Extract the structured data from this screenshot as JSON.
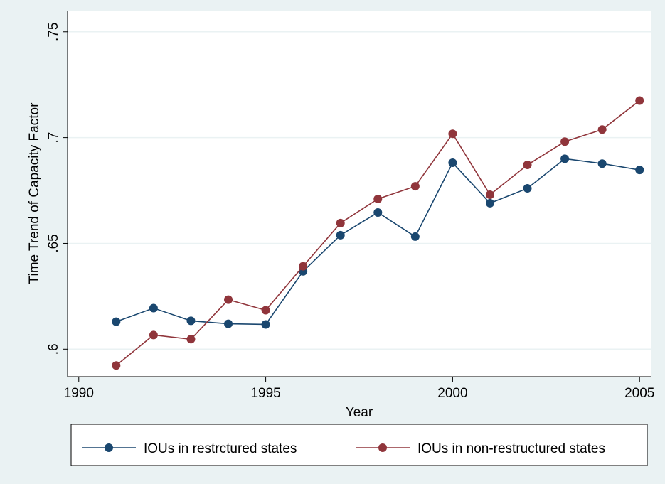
{
  "chart_data": {
    "type": "line",
    "x_label": "Year",
    "y_label": "Time Trend of Capacity Factor",
    "x": [
      1991,
      1992,
      1993,
      1994,
      1995,
      1996,
      1997,
      1998,
      1999,
      2000,
      2001,
      2002,
      2003,
      2004,
      2005
    ],
    "series": [
      {
        "name": "IOUs in restrctured states",
        "color": "#1a476f",
        "values": [
          0.613,
          0.6194,
          0.6134,
          0.612,
          0.6117,
          0.6368,
          0.6539,
          0.6646,
          0.6532,
          0.6881,
          0.669,
          0.676,
          0.69,
          0.6877,
          0.6847
        ]
      },
      {
        "name": "IOUs in non-restructured states",
        "color": "#90353b",
        "values": [
          0.5923,
          0.6067,
          0.6047,
          0.6234,
          0.6184,
          0.6392,
          0.6596,
          0.671,
          0.677,
          0.7018,
          0.673,
          0.6871,
          0.6981,
          0.7038,
          0.7175
        ]
      }
    ],
    "xlim": [
      1989.7,
      2005.3
    ],
    "xticks": [
      1990,
      1995,
      2000,
      2005
    ],
    "ylim": [
      0.587,
      0.76
    ],
    "yticks": [
      {
        "value": 0.6,
        "label": ".6"
      },
      {
        "value": 0.65,
        "label": ".65"
      },
      {
        "value": 0.7,
        "label": ".7"
      },
      {
        "value": 0.75,
        "label": ".75"
      }
    ],
    "grid": true,
    "legend": "bottom"
  }
}
